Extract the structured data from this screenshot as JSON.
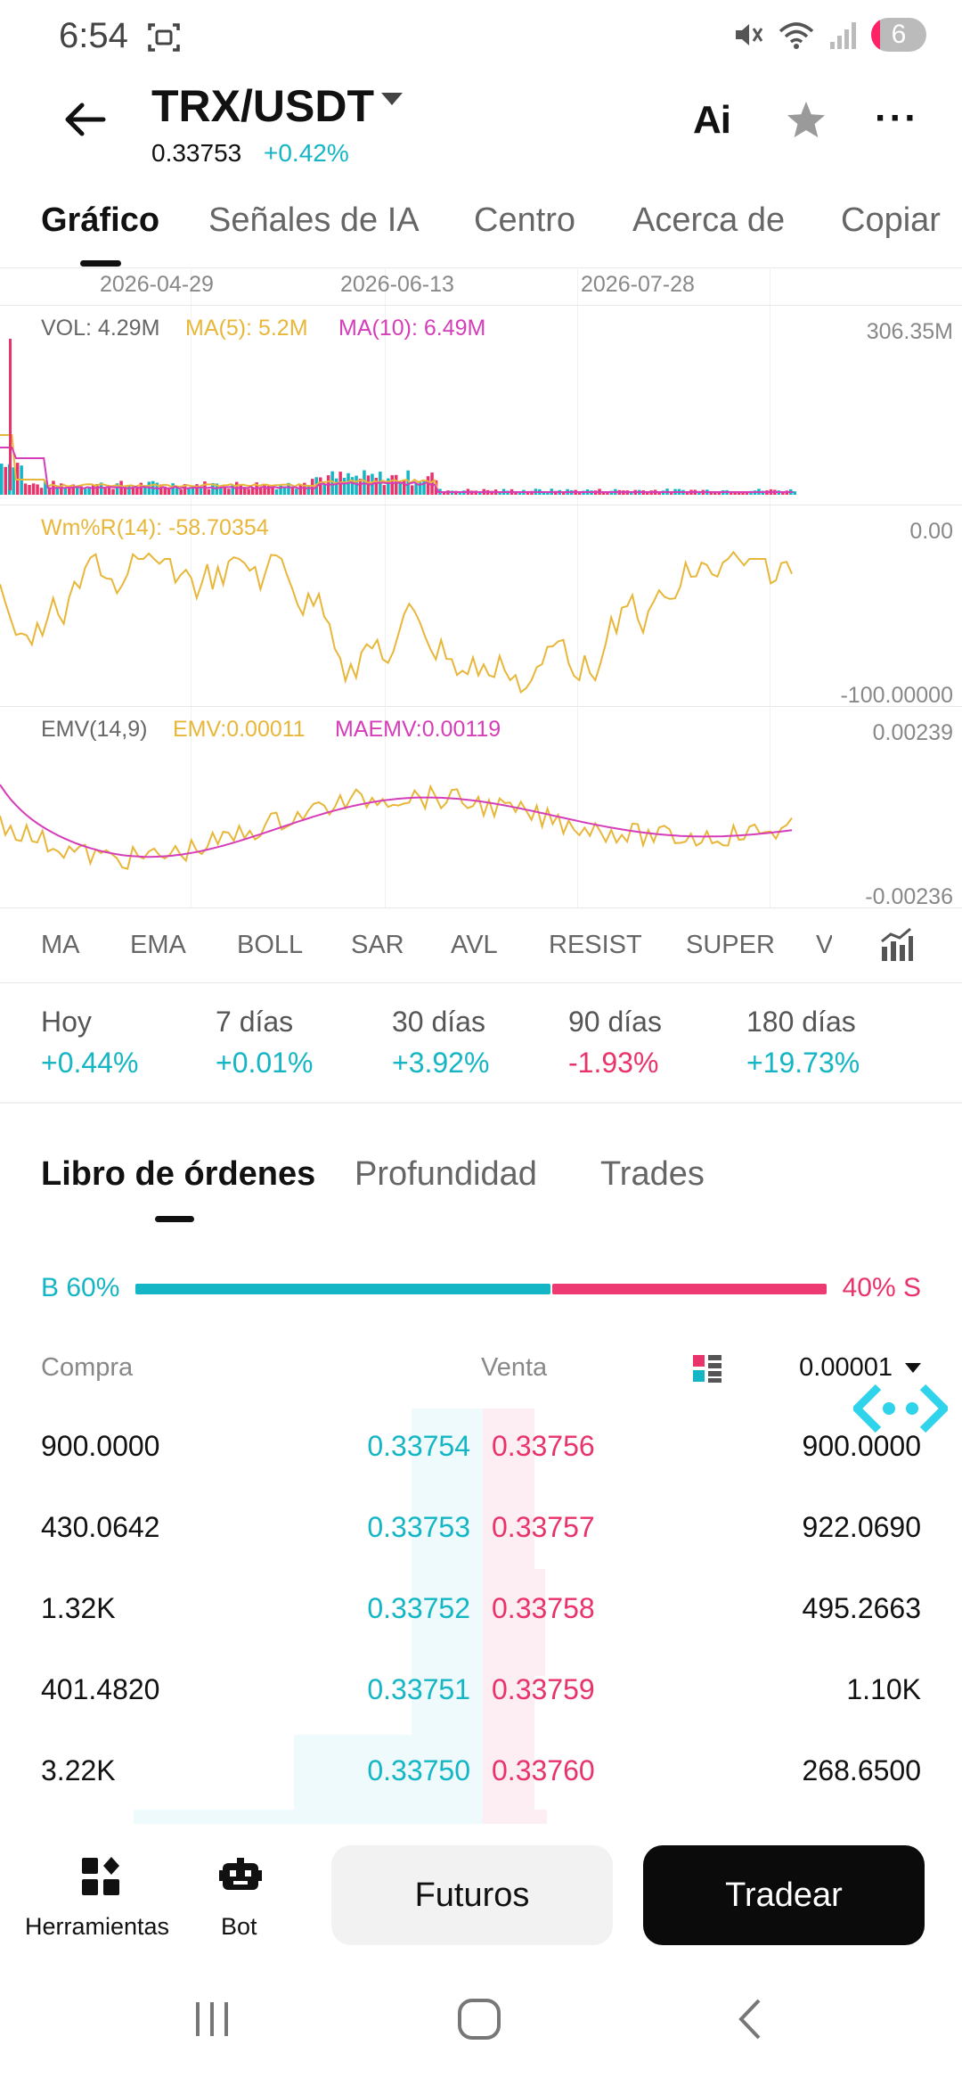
{
  "status_bar": {
    "time": "6:54",
    "battery": "6"
  },
  "header": {
    "pair": "TRX/USDT",
    "price": "0.33753",
    "change": "+0.42%",
    "ai_label": "Ai",
    "more_label": "···"
  },
  "tabs": [
    {
      "label": "Gráfico",
      "active": true
    },
    {
      "label": "Señales de IA"
    },
    {
      "label": "Centro"
    },
    {
      "label": "Acerca de"
    },
    {
      "label": "Copiar"
    }
  ],
  "chart": {
    "dates": [
      "2026-04-29",
      "2026-06-13",
      "2026-07-28"
    ],
    "volume": {
      "vol": "VOL: 4.29M",
      "ma5": "MA(5): 5.2M",
      "ma10": "MA(10): 6.49M",
      "axis_max": "306.35M"
    },
    "wmr": {
      "label": "Wm%R(14): -58.70354",
      "axis_top": "0.00",
      "axis_bottom": "-100.00000"
    },
    "emv": {
      "label": "EMV(14,9)",
      "emv": "EMV:0.00011",
      "maemv": "MAEMV:0.00119",
      "axis_top": "0.00239",
      "axis_bottom": "-0.00236"
    },
    "colors": {
      "yellow": "#e8b73a",
      "pink": "#d63db8",
      "teal": "#14b5c4",
      "red": "#e8336b"
    }
  },
  "indicators": [
    "MA",
    "EMA",
    "BOLL",
    "SAR",
    "AVL",
    "RESIST",
    "SUPER",
    "V"
  ],
  "performance": [
    {
      "label": "Hoy",
      "value": "+0.44%",
      "dir": "up"
    },
    {
      "label": "7 días",
      "value": "+0.01%",
      "dir": "up"
    },
    {
      "label": "30 días",
      "value": "+3.92%",
      "dir": "up"
    },
    {
      "label": "90 días",
      "value": "-1.93%",
      "dir": "down"
    },
    {
      "label": "180 días",
      "value": "+19.73%",
      "dir": "up"
    }
  ],
  "orderbook": {
    "tabs": [
      "Libro de órdenes",
      "Profundidad",
      "Trades"
    ],
    "buy_ratio": "B 60%",
    "sell_ratio": "40% S",
    "buy_fraction": 0.6,
    "col_buy": "Compra",
    "col_sell": "Venta",
    "precision": "0.00001",
    "rows": [
      {
        "bid_qty": "900.0000",
        "bid_px": "0.33754",
        "ask_px": "0.33756",
        "ask_qty": "900.0000"
      },
      {
        "bid_qty": "430.0642",
        "bid_px": "0.33753",
        "ask_px": "0.33757",
        "ask_qty": "922.0690"
      },
      {
        "bid_qty": "1.32K",
        "bid_px": "0.33752",
        "ask_px": "0.33758",
        "ask_qty": "495.2663"
      },
      {
        "bid_qty": "401.4820",
        "bid_px": "0.33751",
        "ask_px": "0.33759",
        "ask_qty": "1.10K"
      },
      {
        "bid_qty": "3.22K",
        "bid_px": "0.33750",
        "ask_px": "0.33760",
        "ask_qty": "268.6500"
      }
    ]
  },
  "bottom_bar": {
    "tools_label": "Herramientas",
    "bot_label": "Bot",
    "futures_label": "Futuros",
    "trade_label": "Tradear"
  }
}
